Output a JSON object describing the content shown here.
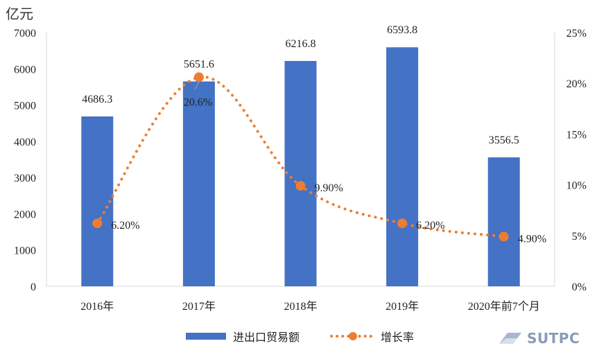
{
  "chart_data": {
    "type": "bar",
    "unit_label": "亿元",
    "categories": [
      "2016年",
      "2017年",
      "2018年",
      "2019年",
      "2020年前7个月"
    ],
    "series": [
      {
        "name": "进出口贸易额",
        "type": "bar",
        "axis": "left",
        "color": "#4472C4",
        "values": [
          4686.3,
          5651.6,
          6216.8,
          6593.8,
          3556.5
        ],
        "data_labels": [
          "4686.3",
          "5651.6",
          "6216.8",
          "6593.8",
          "3556.5"
        ]
      },
      {
        "name": "增长率",
        "type": "line",
        "axis": "right",
        "color": "#ED7D31",
        "line_style": "dotted",
        "values": [
          6.2,
          20.6,
          9.9,
          6.2,
          4.9
        ],
        "data_labels": [
          "6.20%",
          "20.6%",
          "9.90%",
          "6.20%",
          "4.90%"
        ]
      }
    ],
    "y_left": {
      "min": 0,
      "max": 7000,
      "ticks": [
        "0",
        "1000",
        "2000",
        "3000",
        "4000",
        "5000",
        "6000",
        "7000"
      ]
    },
    "y_right": {
      "min": 0,
      "max": 25,
      "ticks": [
        "0%",
        "5%",
        "10%",
        "15%",
        "20%",
        "25%"
      ]
    },
    "grid": false,
    "legend_position": "bottom"
  },
  "watermark": {
    "text": "SUTPC"
  }
}
